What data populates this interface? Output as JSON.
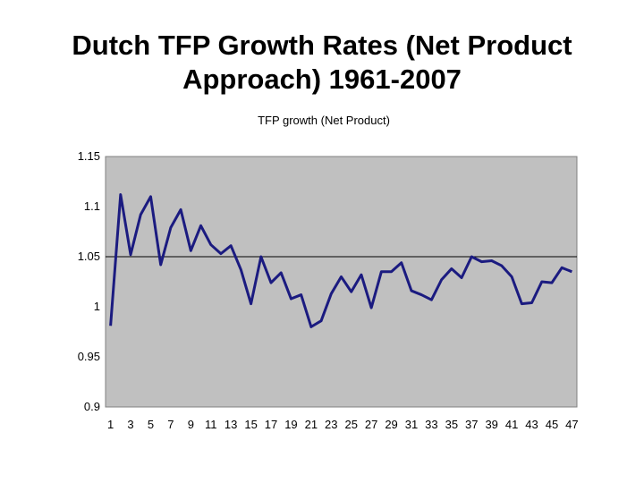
{
  "slide": {
    "title": "Dutch TFP Growth Rates (Net Product\nApproach) 1961-2007"
  },
  "chart_data": {
    "type": "line",
    "title": "TFP growth (Net Product)",
    "xlabel": "",
    "ylabel": "",
    "ylim": [
      0.9,
      1.15
    ],
    "yticks": [
      "1.15",
      "1.1",
      "1.05",
      "1",
      "0.95",
      "0.9"
    ],
    "ytick_values": [
      1.15,
      1.1,
      1.05,
      1.0,
      0.95,
      0.9
    ],
    "reference_line": 1.05,
    "x": [
      1,
      2,
      3,
      4,
      5,
      6,
      7,
      8,
      9,
      10,
      11,
      12,
      13,
      14,
      15,
      16,
      17,
      18,
      19,
      20,
      21,
      22,
      23,
      24,
      25,
      26,
      27,
      28,
      29,
      30,
      31,
      32,
      33,
      34,
      35,
      36,
      37,
      38,
      39,
      40,
      41,
      42,
      43,
      44,
      45,
      46,
      47
    ],
    "xtick_labels": [
      "1",
      "3",
      "5",
      "7",
      "9",
      "11",
      "13",
      "15",
      "17",
      "19",
      "21",
      "23",
      "25",
      "27",
      "29",
      "31",
      "33",
      "35",
      "37",
      "39",
      "41",
      "43",
      "45",
      "47"
    ],
    "series": [
      {
        "values": [
          0.981,
          1.112,
          1.052,
          1.092,
          1.11,
          1.042,
          1.079,
          1.097,
          1.056,
          1.081,
          1.062,
          1.053,
          1.061,
          1.037,
          1.003,
          1.05,
          1.024,
          1.034,
          1.008,
          1.012,
          0.98,
          0.986,
          1.013,
          1.03,
          1.015,
          1.032,
          0.999,
          1.035,
          1.035,
          1.044,
          1.016,
          1.012,
          1.007,
          1.027,
          1.038,
          1.029,
          1.05,
          1.045,
          1.046,
          1.041,
          1.03,
          1.003,
          1.004,
          1.025,
          1.024,
          1.039,
          1.035
        ],
        "color": "#1b1b80"
      }
    ],
    "plot_background": "#c0c0c0",
    "grid": false,
    "legend": "none"
  }
}
